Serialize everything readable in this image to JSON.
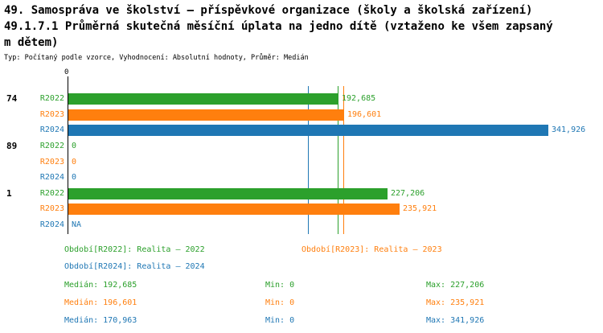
{
  "title": {
    "line1": "49. Samospráva ve školství – příspěvkové organizace (školy a školská zařízení)",
    "line2": "49.1.7.1 Průměrná skutečná měsíční úplata na jedno dítě (vztaženo ke všem zapsaný",
    "line3": "m dětem)",
    "subtitle": "Typ: Počítaný podle vzorce, Vyhodnocení: Absolutní hodnoty, Průměr: Medián"
  },
  "colors": {
    "green": "#2ca02c",
    "orange": "#ff7f0e",
    "blue": "#1f77b4",
    "axis": "#000000"
  },
  "chart_data": {
    "type": "bar",
    "orientation": "horizontal",
    "x_axis": {
      "origin_label": "0",
      "visible_ticks": [
        "0"
      ]
    },
    "series_names": [
      "R2022",
      "R2023",
      "R2024"
    ],
    "groups": [
      {
        "label": "74",
        "bars": [
          {
            "series": "R2022",
            "value": 192685,
            "value_label": "192,685",
            "color": "#2ca02c"
          },
          {
            "series": "R2023",
            "value": 196601,
            "value_label": "196,601",
            "color": "#ff7f0e"
          },
          {
            "series": "R2024",
            "value": 341926,
            "value_label": "341,926",
            "color": "#1f77b4"
          }
        ]
      },
      {
        "label": "89",
        "bars": [
          {
            "series": "R2022",
            "value": 0,
            "value_label": "0",
            "color": "#2ca02c"
          },
          {
            "series": "R2023",
            "value": 0,
            "value_label": "0",
            "color": "#ff7f0e"
          },
          {
            "series": "R2024",
            "value": 0,
            "value_label": "0",
            "color": "#1f77b4"
          }
        ]
      },
      {
        "label": "1",
        "bars": [
          {
            "series": "R2022",
            "value": 227206,
            "value_label": "227,206",
            "color": "#2ca02c"
          },
          {
            "series": "R2023",
            "value": 235921,
            "value_label": "235,921",
            "color": "#ff7f0e"
          },
          {
            "series": "R2024",
            "value": null,
            "value_label": "NA",
            "color": "#1f77b4"
          }
        ]
      }
    ],
    "median_lines": [
      {
        "series": "R2022",
        "value": 192685,
        "color": "#2ca02c"
      },
      {
        "series": "R2023",
        "value": 196601,
        "color": "#ff7f0e"
      },
      {
        "series": "R2024",
        "value": 170963,
        "color": "#1f77b4"
      }
    ]
  },
  "legend": [
    {
      "label": "Období[R2022]: Realita – 2022",
      "color": "#2ca02c"
    },
    {
      "label": "Období[R2023]: Realita – 2023",
      "color": "#ff7f0e"
    },
    {
      "label": "Období[R2024]: Realita – 2024",
      "color": "#1f77b4"
    }
  ],
  "stats": [
    {
      "median": "Medián: 192,685",
      "min": "Min: 0",
      "max": "Max: 227,206",
      "color": "#2ca02c"
    },
    {
      "median": "Medián: 196,601",
      "min": "Min: 0",
      "max": "Max: 235,921",
      "color": "#ff7f0e"
    },
    {
      "median": "Medián: 170,963",
      "min": "Min: 0",
      "max": "Max: 341,926",
      "color": "#1f77b4"
    }
  ]
}
